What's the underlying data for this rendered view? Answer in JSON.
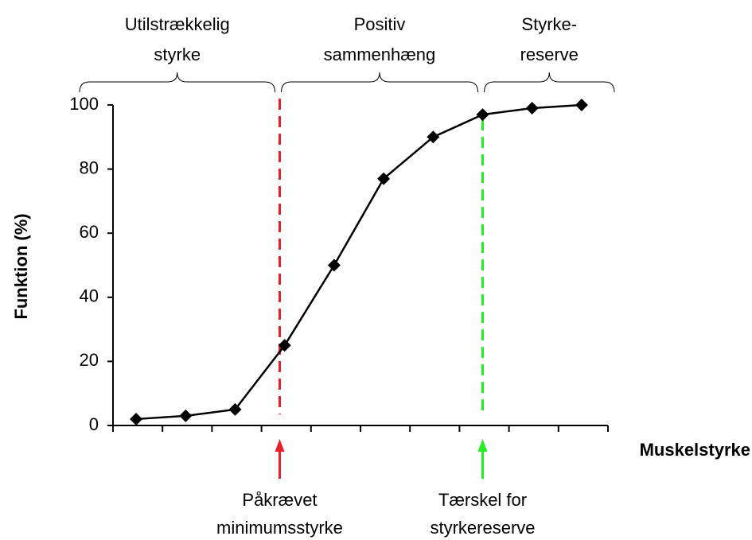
{
  "chart_data": {
    "type": "line",
    "y_label": "Funktion (%)",
    "x_label": "Muskelstyrke",
    "categories": [
      null,
      null,
      null,
      null,
      null,
      null,
      null,
      null,
      null,
      null
    ],
    "values": [
      2,
      3,
      5,
      25,
      50,
      77,
      90,
      97,
      99,
      100
    ],
    "color": "#000000",
    "ylim": [
      0,
      100
    ],
    "yticks": [
      0,
      20,
      40,
      60,
      80,
      100
    ],
    "regions": [
      {
        "label": [
          "Utilstrækkelig",
          "styrke"
        ]
      },
      {
        "label": [
          "Positiv",
          "sammenhæng"
        ]
      },
      {
        "label": [
          "Styrke-",
          "reserve"
        ]
      }
    ],
    "markers": [
      {
        "at": 2.9,
        "color": "#e8202a",
        "label": [
          "Påkrævet",
          "minimumsstyrke"
        ]
      },
      {
        "at": 7,
        "color": "#22ee22",
        "label": [
          "Tærskel for",
          "styrkereserve"
        ]
      }
    ]
  }
}
